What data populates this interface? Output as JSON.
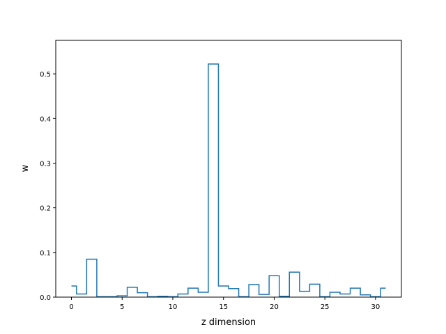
{
  "chart_data": {
    "type": "line",
    "drawstyle": "steps-mid",
    "xlabel": "z dimension",
    "ylabel": "w",
    "xlim": [
      -1.55,
      32.55
    ],
    "ylim": [
      0,
      0.575
    ],
    "xticks": [
      0,
      5,
      10,
      15,
      20,
      25,
      30
    ],
    "xtick_labels": [
      "0",
      "5",
      "10",
      "15",
      "20",
      "25",
      "30"
    ],
    "yticks": [
      0.0,
      0.1,
      0.2,
      0.3,
      0.4,
      0.5
    ],
    "ytick_labels": [
      "0.0",
      "0.1",
      "0.2",
      "0.3",
      "0.4",
      "0.5"
    ],
    "grid": false,
    "line_color": "#1f77b4",
    "x": [
      0,
      1,
      2,
      3,
      4,
      5,
      6,
      7,
      8,
      9,
      10,
      11,
      12,
      13,
      14,
      15,
      16,
      17,
      18,
      19,
      20,
      21,
      22,
      23,
      24,
      25,
      26,
      27,
      28,
      29,
      30,
      31
    ],
    "y": [
      0.025,
      0.007,
      0.085,
      0.001,
      0.001,
      0.003,
      0.022,
      0.01,
      0.001,
      0.002,
      0.001,
      0.007,
      0.02,
      0.011,
      0.522,
      0.025,
      0.019,
      0.001,
      0.028,
      0.006,
      0.048,
      0.002,
      0.056,
      0.013,
      0.029,
      0.001,
      0.011,
      0.007,
      0.02,
      0.005,
      0.001,
      0.02
    ]
  }
}
